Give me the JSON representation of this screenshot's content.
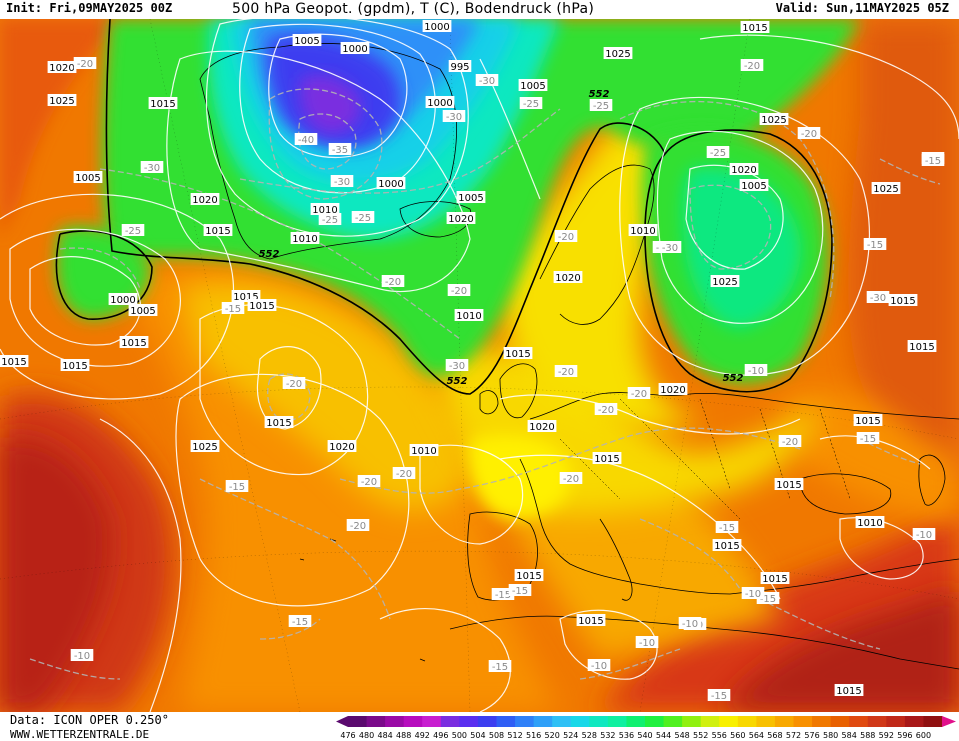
{
  "header": {
    "init": "Init: Fri,09MAY2025 00Z",
    "title": "500 hPa Geopot. (gpdm), T (C), Bodendruck (hPa)",
    "valid": "Valid: Sun,11MAY2025 05Z"
  },
  "footer": {
    "data_source": "Data: ICON OPER 0.250°",
    "website": "WWW.WETTERZENTRALE.DE"
  },
  "legend": {
    "values": [
      "476",
      "480",
      "484",
      "488",
      "492",
      "496",
      "500",
      "504",
      "508",
      "512",
      "516",
      "520",
      "524",
      "528",
      "532",
      "536",
      "540",
      "544",
      "548",
      "552",
      "556",
      "560",
      "564",
      "568",
      "572",
      "576",
      "580",
      "584",
      "588",
      "592",
      "596",
      "600"
    ],
    "colors": [
      "#5a0a6e",
      "#7a0a8a",
      "#9a0aa6",
      "#b70cbe",
      "#c81ed0",
      "#7a2ee0",
      "#5a2ff0",
      "#3c3ef0",
      "#2f5ef5",
      "#2f80f8",
      "#2fa0f8",
      "#2fc0f5",
      "#18d8e8",
      "#10e8c0",
      "#10f0a0",
      "#10f070",
      "#20f040",
      "#50f020",
      "#90f010",
      "#d0f010",
      "#f8f000",
      "#f8d800",
      "#f8c000",
      "#f8a800",
      "#f89000",
      "#f07800",
      "#e86000",
      "#e04a10",
      "#d03818",
      "#c02818",
      "#a81818",
      "#901010"
    ]
  },
  "map": {
    "geopotential_values": [
      "552",
      "552",
      "552",
      "552"
    ],
    "pressure_values": [
      "1000",
      "1005",
      "1000",
      "995",
      "1000",
      "1005",
      "1020",
      "1025",
      "1015",
      "1025",
      "1015",
      "1005",
      "1000",
      "1005",
      "1010",
      "1020",
      "1020",
      "1015",
      "1025",
      "1020",
      "1010",
      "1015",
      "1015",
      "1015",
      "1015",
      "1025",
      "1000",
      "1005",
      "1010",
      "1020",
      "1015",
      "1010",
      "1020",
      "1015",
      "1025",
      "1025",
      "1015",
      "1020",
      "1015",
      "1010",
      "1020",
      "1015",
      "1015",
      "1015",
      "1015",
      "1015",
      "1010",
      "1005",
      "1015",
      "1015",
      "1015",
      "1015"
    ],
    "temperature_values": [
      "-20",
      "-20",
      "-30",
      "-40",
      "-35",
      "-30",
      "-30",
      "-25",
      "-25",
      "-30",
      "-25",
      "-25",
      "-20",
      "-30",
      "-25",
      "-20",
      "-20",
      "-15",
      "-15",
      "-20",
      "-30",
      "-15",
      "-20",
      "-20",
      "-20",
      "-20",
      "-20",
      "-20",
      "-20",
      "-20",
      "-20",
      "-15",
      "-15",
      "-15",
      "-15",
      "-10",
      "-10",
      "-10",
      "-10",
      "-10",
      "-15",
      "-15",
      "-15",
      "-15",
      "-15",
      "-10",
      "-10",
      "-10",
      "-25",
      "-30",
      "-15",
      "-20"
    ]
  }
}
